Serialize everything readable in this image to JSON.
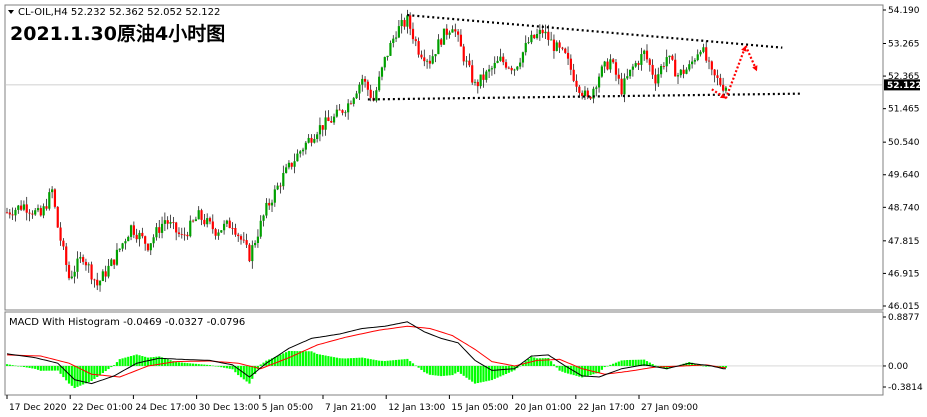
{
  "header": {
    "symbol_info": "CL-OIL,H4  52.232 52.362 52.052 52.122",
    "annotation_title": "2021.1.30原油4小时图"
  },
  "macd": {
    "label": "MACD With Histogram -0.0469 -0.0327 -0.0796",
    "ticks": [
      "0.8877",
      "0.00",
      "-0.3814"
    ],
    "tick_values": [
      0.8877,
      0.0,
      -0.3814
    ],
    "colors": {
      "macd": "#000000",
      "signal": "#ff0000",
      "histogram": "#00ff00"
    }
  },
  "price_axis": {
    "ticks": [
      "54.190",
      "53.265",
      "52.365",
      "51.465",
      "50.540",
      "49.640",
      "48.740",
      "47.815",
      "46.915",
      "46.015"
    ],
    "tick_values": [
      54.19,
      53.265,
      52.365,
      51.465,
      50.54,
      49.64,
      48.74,
      47.815,
      46.915,
      46.015
    ],
    "current_price": "52.122",
    "current_value": 52.122
  },
  "time_axis": {
    "labels": [
      "17 Dec 2020",
      "22 Dec 01:00",
      "24 Dec 17:00",
      "30 Dec 13:00",
      "5 Jan 05:00",
      "7 Jan 21:00",
      "12 Jan 13:00",
      "15 Jan 05:00",
      "20 Jan 01:00",
      "22 Jan 17:00",
      "27 Jan 09:00"
    ]
  },
  "colors": {
    "bull": "#00a000",
    "bear": "#ff0000",
    "wick": "#000000",
    "trendline": "#000000",
    "arrow": "#ff0000",
    "grid": "#c0c0c0"
  },
  "chart_data": {
    "type": "candlestick",
    "timeframe": "H4",
    "ylim": [
      46.015,
      54.19
    ],
    "last_ohlc": {
      "open": 52.232,
      "high": 52.362,
      "low": 52.052,
      "close": 52.122
    },
    "price_path": [
      [
        0,
        48.6
      ],
      [
        6,
        48.8
      ],
      [
        12,
        48.5
      ],
      [
        16,
        49.2
      ],
      [
        18,
        48.2
      ],
      [
        22,
        46.8
      ],
      [
        27,
        47.4
      ],
      [
        32,
        46.6
      ],
      [
        38,
        47.3
      ],
      [
        44,
        48.2
      ],
      [
        50,
        47.7
      ],
      [
        56,
        48.4
      ],
      [
        62,
        47.9
      ],
      [
        68,
        48.5
      ],
      [
        74,
        48.1
      ],
      [
        80,
        48.3
      ],
      [
        86,
        47.4
      ],
      [
        92,
        48.7
      ],
      [
        98,
        49.6
      ],
      [
        104,
        50.3
      ],
      [
        110,
        50.9
      ],
      [
        116,
        51.2
      ],
      [
        121,
        51.6
      ],
      [
        126,
        52.3
      ],
      [
        130,
        51.7
      ],
      [
        134,
        52.8
      ],
      [
        138,
        53.6
      ],
      [
        142,
        53.9
      ],
      [
        146,
        53.1
      ],
      [
        150,
        52.8
      ],
      [
        154,
        53.4
      ],
      [
        158,
        53.8
      ],
      [
        162,
        52.9
      ],
      [
        166,
        52.1
      ],
      [
        170,
        52.4
      ],
      [
        175,
        52.8
      ],
      [
        180,
        52.6
      ],
      [
        185,
        53.3
      ],
      [
        190,
        53.6
      ],
      [
        194,
        53.2
      ],
      [
        198,
        52.9
      ],
      [
        202,
        52.2
      ],
      [
        206,
        51.7
      ],
      [
        210,
        52.4
      ],
      [
        214,
        52.8
      ],
      [
        218,
        52.0
      ],
      [
        222,
        52.6
      ],
      [
        226,
        53.0
      ],
      [
        230,
        52.3
      ],
      [
        234,
        52.9
      ],
      [
        238,
        52.4
      ],
      [
        242,
        52.6
      ],
      [
        246,
        53.2
      ],
      [
        250,
        52.4
      ],
      [
        254,
        52.1
      ]
    ],
    "macd_path": [
      [
        0,
        0.22
      ],
      [
        10,
        0.15
      ],
      [
        18,
        0.05
      ],
      [
        24,
        -0.25
      ],
      [
        30,
        -0.32
      ],
      [
        38,
        -0.18
      ],
      [
        46,
        0.05
      ],
      [
        54,
        0.14
      ],
      [
        62,
        0.12
      ],
      [
        72,
        0.1
      ],
      [
        80,
        0.02
      ],
      [
        86,
        -0.2
      ],
      [
        92,
        0.05
      ],
      [
        100,
        0.32
      ],
      [
        108,
        0.5
      ],
      [
        118,
        0.58
      ],
      [
        126,
        0.68
      ],
      [
        134,
        0.72
      ],
      [
        142,
        0.8
      ],
      [
        148,
        0.62
      ],
      [
        154,
        0.5
      ],
      [
        160,
        0.42
      ],
      [
        166,
        0.1
      ],
      [
        172,
        -0.08
      ],
      [
        180,
        -0.05
      ],
      [
        186,
        0.18
      ],
      [
        192,
        0.2
      ],
      [
        198,
        0.0
      ],
      [
        204,
        -0.18
      ],
      [
        210,
        -0.2
      ],
      [
        218,
        -0.05
      ],
      [
        226,
        0.02
      ],
      [
        234,
        -0.05
      ],
      [
        242,
        0.05
      ],
      [
        250,
        0.0
      ],
      [
        254,
        -0.05
      ]
    ],
    "signal_path": [
      [
        0,
        0.2
      ],
      [
        12,
        0.18
      ],
      [
        22,
        0.05
      ],
      [
        30,
        -0.15
      ],
      [
        40,
        -0.2
      ],
      [
        50,
        0.0
      ],
      [
        60,
        0.08
      ],
      [
        72,
        0.09
      ],
      [
        82,
        0.05
      ],
      [
        90,
        -0.05
      ],
      [
        100,
        0.15
      ],
      [
        110,
        0.38
      ],
      [
        120,
        0.52
      ],
      [
        132,
        0.65
      ],
      [
        142,
        0.72
      ],
      [
        150,
        0.68
      ],
      [
        158,
        0.55
      ],
      [
        166,
        0.3
      ],
      [
        172,
        0.08
      ],
      [
        180,
        0.0
      ],
      [
        188,
        0.1
      ],
      [
        196,
        0.12
      ],
      [
        204,
        -0.05
      ],
      [
        212,
        -0.15
      ],
      [
        220,
        -0.1
      ],
      [
        230,
        -0.02
      ],
      [
        240,
        0.0
      ],
      [
        248,
        0.02
      ],
      [
        254,
        -0.03
      ]
    ],
    "trendlines": [
      {
        "name": "upper",
        "from": [
          142,
          54.05
        ],
        "to": [
          275,
          53.15
        ]
      },
      {
        "name": "lower",
        "from": [
          128,
          51.72
        ],
        "to": [
          282,
          51.88
        ]
      }
    ],
    "forecast_arrows": [
      {
        "from": [
          250,
          52.0
        ],
        "to": [
          255,
          51.75
        ]
      },
      {
        "from": [
          255,
          51.75
        ],
        "to": [
          262,
          53.2
        ]
      },
      {
        "from": [
          262,
          53.2
        ],
        "to": [
          266,
          52.5
        ]
      }
    ],
    "xlim": [
      0,
      310
    ],
    "bar_count": 256
  }
}
